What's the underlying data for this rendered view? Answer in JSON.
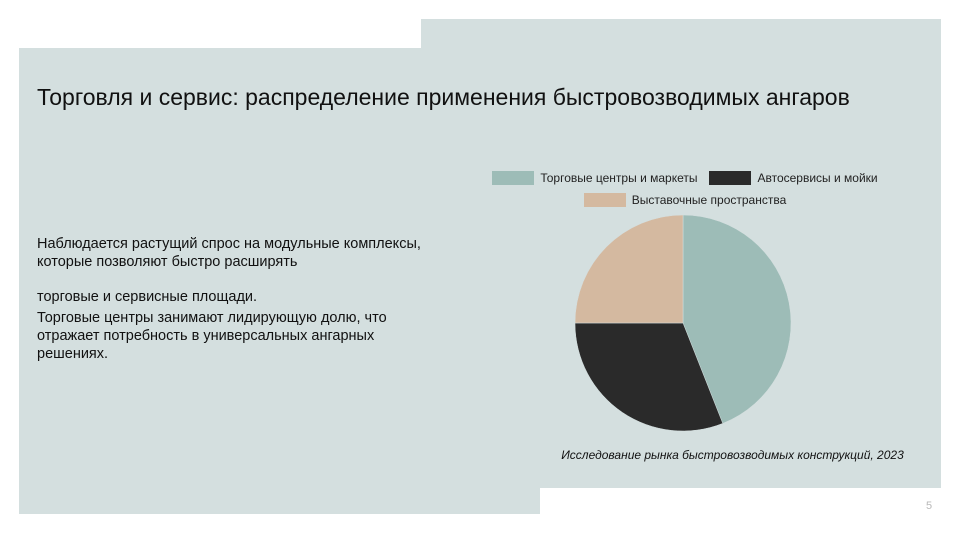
{
  "slide": {
    "title": "Торговля и сервис: распределение применения быстровозводимых ангаров",
    "paragraphs": [
      "Наблюдается растущий спрос на модульные комплексы, которые позволяют быстро расширять",
      "торговые и сервисные площади.",
      "Торговые центры занимают лидирующую долю, что отражает потребность в универсальных ангарных решениях."
    ],
    "source": "Исследование рынка быстровозводимых конструкций, 2023",
    "page_number": "5"
  },
  "colors": {
    "background_panel": "#d4dfdf",
    "series": [
      "#9dbcb7",
      "#2a2a2a",
      "#d4b9a0"
    ]
  },
  "chart_data": {
    "type": "pie",
    "categories": [
      "Торговые центры и маркеты",
      "Автосервисы и мойки",
      "Выставочные пространства"
    ],
    "values": [
      44,
      31,
      25
    ],
    "legend_position": "top"
  }
}
